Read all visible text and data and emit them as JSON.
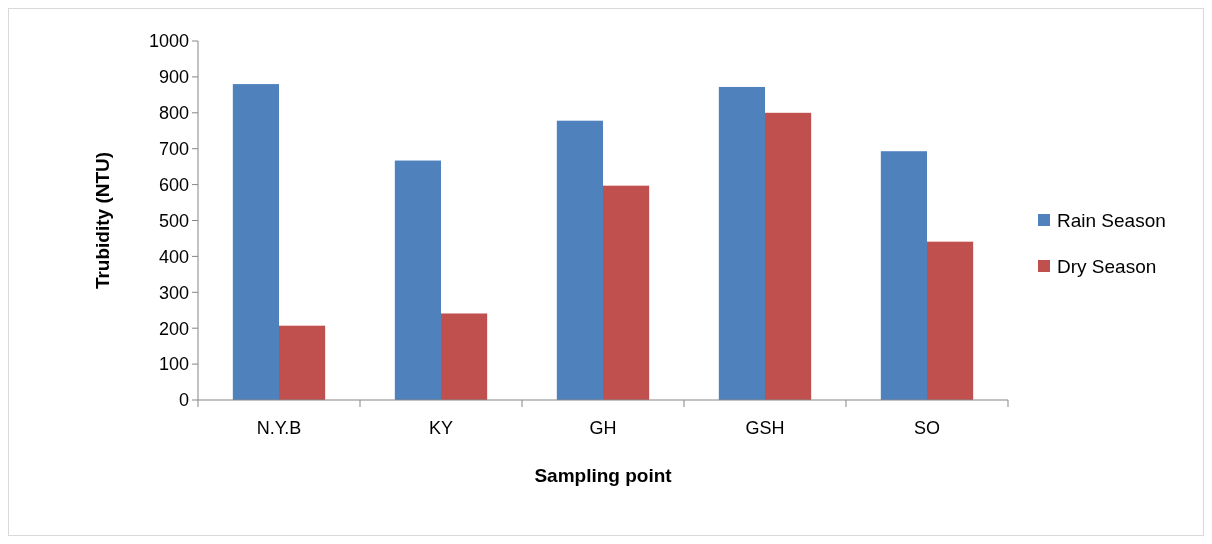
{
  "chart_data": {
    "type": "bar",
    "xlabel": "Sampling point",
    "ylabel": "Trubidity (NTU)",
    "categories": [
      "N.Y.B",
      "KY",
      "GH",
      "GSH",
      "SO"
    ],
    "series": [
      {
        "name": "Rain Season",
        "color": "#4f81bd",
        "values": [
          880,
          667,
          778,
          872,
          693
        ]
      },
      {
        "name": "Dry Season",
        "color": "#c0504d",
        "values": [
          207,
          241,
          597,
          800,
          441
        ]
      }
    ],
    "ylim": [
      0,
      1000
    ],
    "yticks": [
      0,
      100,
      200,
      300,
      400,
      500,
      600,
      700,
      800,
      900,
      1000
    ],
    "grid": false,
    "legend": "right"
  }
}
